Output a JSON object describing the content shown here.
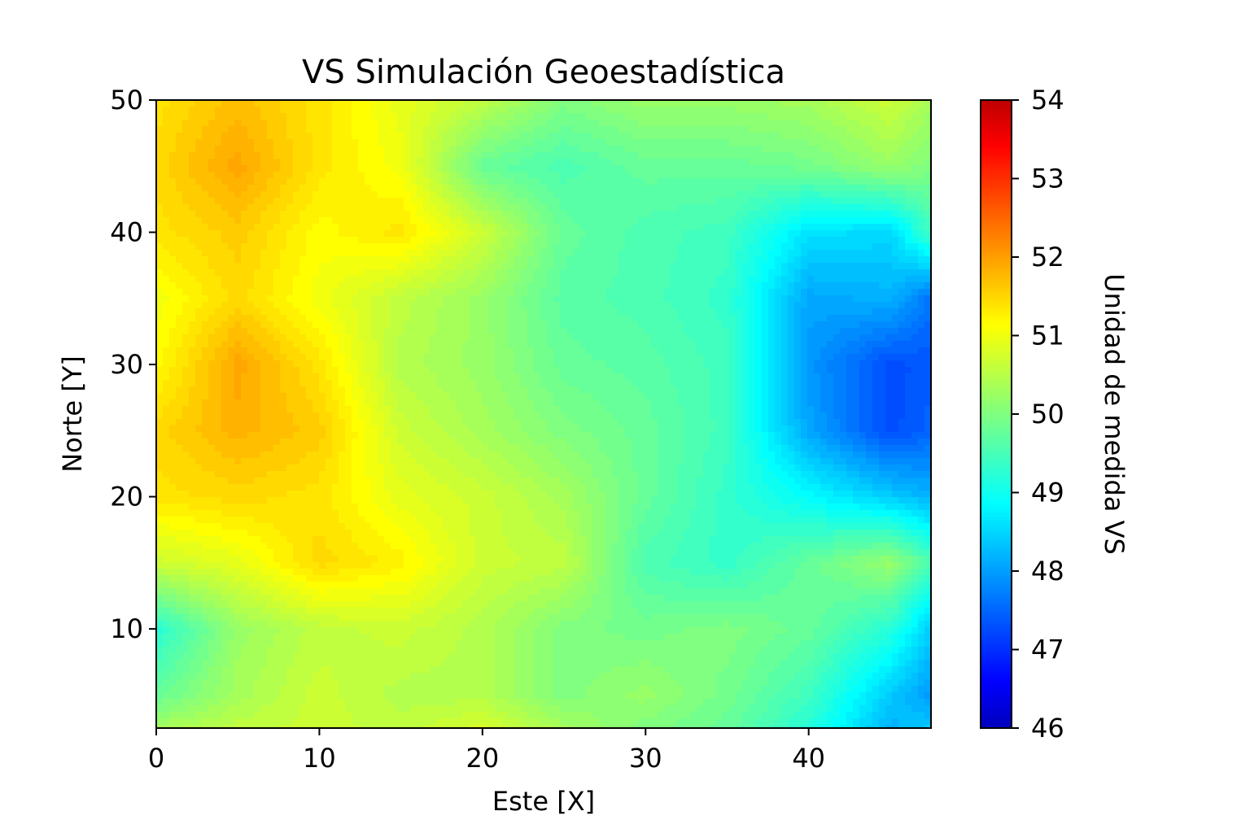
{
  "chart_data": {
    "type": "heatmap",
    "title": "VS Simulación Geoestadística",
    "xlabel": "Este [X]",
    "ylabel": "Norte [Y]",
    "colorbar_label": "Unidad de medida VS",
    "colormap": "jet",
    "xlim": [
      0,
      47.5
    ],
    "ylim": [
      2.5,
      50
    ],
    "clim": [
      46,
      54
    ],
    "xticks": [
      "0",
      "10",
      "20",
      "30",
      "40"
    ],
    "xtick_values": [
      0,
      10,
      20,
      30,
      40
    ],
    "yticks": [
      "10",
      "20",
      "30",
      "40",
      "50"
    ],
    "ytick_values": [
      10,
      20,
      30,
      40,
      50
    ],
    "cbar_ticks": [
      "46",
      "47",
      "48",
      "49",
      "50",
      "51",
      "52",
      "53",
      "54"
    ],
    "cbar_tick_values": [
      46,
      47,
      48,
      49,
      50,
      51,
      52,
      53,
      54
    ],
    "x": [
      0,
      5,
      10,
      15,
      20,
      25,
      30,
      35,
      40,
      45,
      47.5
    ],
    "y": [
      50,
      45,
      40,
      35,
      30,
      25,
      20,
      15,
      10,
      5,
      2.5
    ],
    "z": [
      [
        51.2,
        51.5,
        51.2,
        50.8,
        50.5,
        50.0,
        50.2,
        50.2,
        50.3,
        50.6,
        50.3
      ],
      [
        51.3,
        51.7,
        51.2,
        50.9,
        49.8,
        49.6,
        49.8,
        49.8,
        49.9,
        50.2,
        50.0
      ],
      [
        51.2,
        51.4,
        51.0,
        51.2,
        50.6,
        49.8,
        49.6,
        49.5,
        48.8,
        48.7,
        49.5
      ],
      [
        50.9,
        51.3,
        50.9,
        50.5,
        50.2,
        49.7,
        49.6,
        49.4,
        48.3,
        48.4,
        47.9
      ],
      [
        51.0,
        51.7,
        51.2,
        50.4,
        50.2,
        49.8,
        49.7,
        49.5,
        48.2,
        47.6,
        47.7
      ],
      [
        51.3,
        51.6,
        51.4,
        50.6,
        50.3,
        50.0,
        49.8,
        49.5,
        48.3,
        47.6,
        47.8
      ],
      [
        51.2,
        51.3,
        51.2,
        50.8,
        50.6,
        50.3,
        49.8,
        49.4,
        49.0,
        48.6,
        48.4
      ],
      [
        50.6,
        50.8,
        51.3,
        51.1,
        50.6,
        50.5,
        49.6,
        49.4,
        49.8,
        50.2,
        49.6
      ],
      [
        49.3,
        50.2,
        50.5,
        50.6,
        50.4,
        50.0,
        49.9,
        50.0,
        49.8,
        49.3,
        48.6
      ],
      [
        49.8,
        50.3,
        50.6,
        50.4,
        50.4,
        50.0,
        50.2,
        49.9,
        49.5,
        48.6,
        48.2
      ],
      [
        50.3,
        50.5,
        50.6,
        50.5,
        50.7,
        50.3,
        50.0,
        49.8,
        49.3,
        48.4,
        48.6
      ]
    ]
  }
}
